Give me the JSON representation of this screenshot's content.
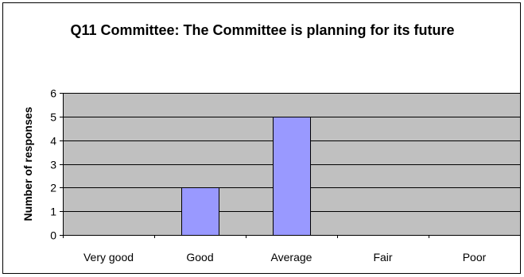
{
  "chart_data": {
    "type": "bar",
    "title": "Q11 Committee: The Committee is planning for its future",
    "xlabel": "",
    "ylabel": "Number of responses",
    "categories": [
      "Very good",
      "Good",
      "Average",
      "Fair",
      "Poor"
    ],
    "values": [
      0,
      2,
      5,
      0,
      0
    ],
    "ylim": [
      0,
      6
    ],
    "yticks": [
      "0",
      "1",
      "2",
      "3",
      "4",
      "5",
      "6"
    ],
    "grid": true,
    "legend": "none",
    "colors": {
      "bar_fill": "#9999ff",
      "bar_stroke": "#000000",
      "plot_background": "#c0c0c0",
      "gridline": "#000000"
    }
  }
}
